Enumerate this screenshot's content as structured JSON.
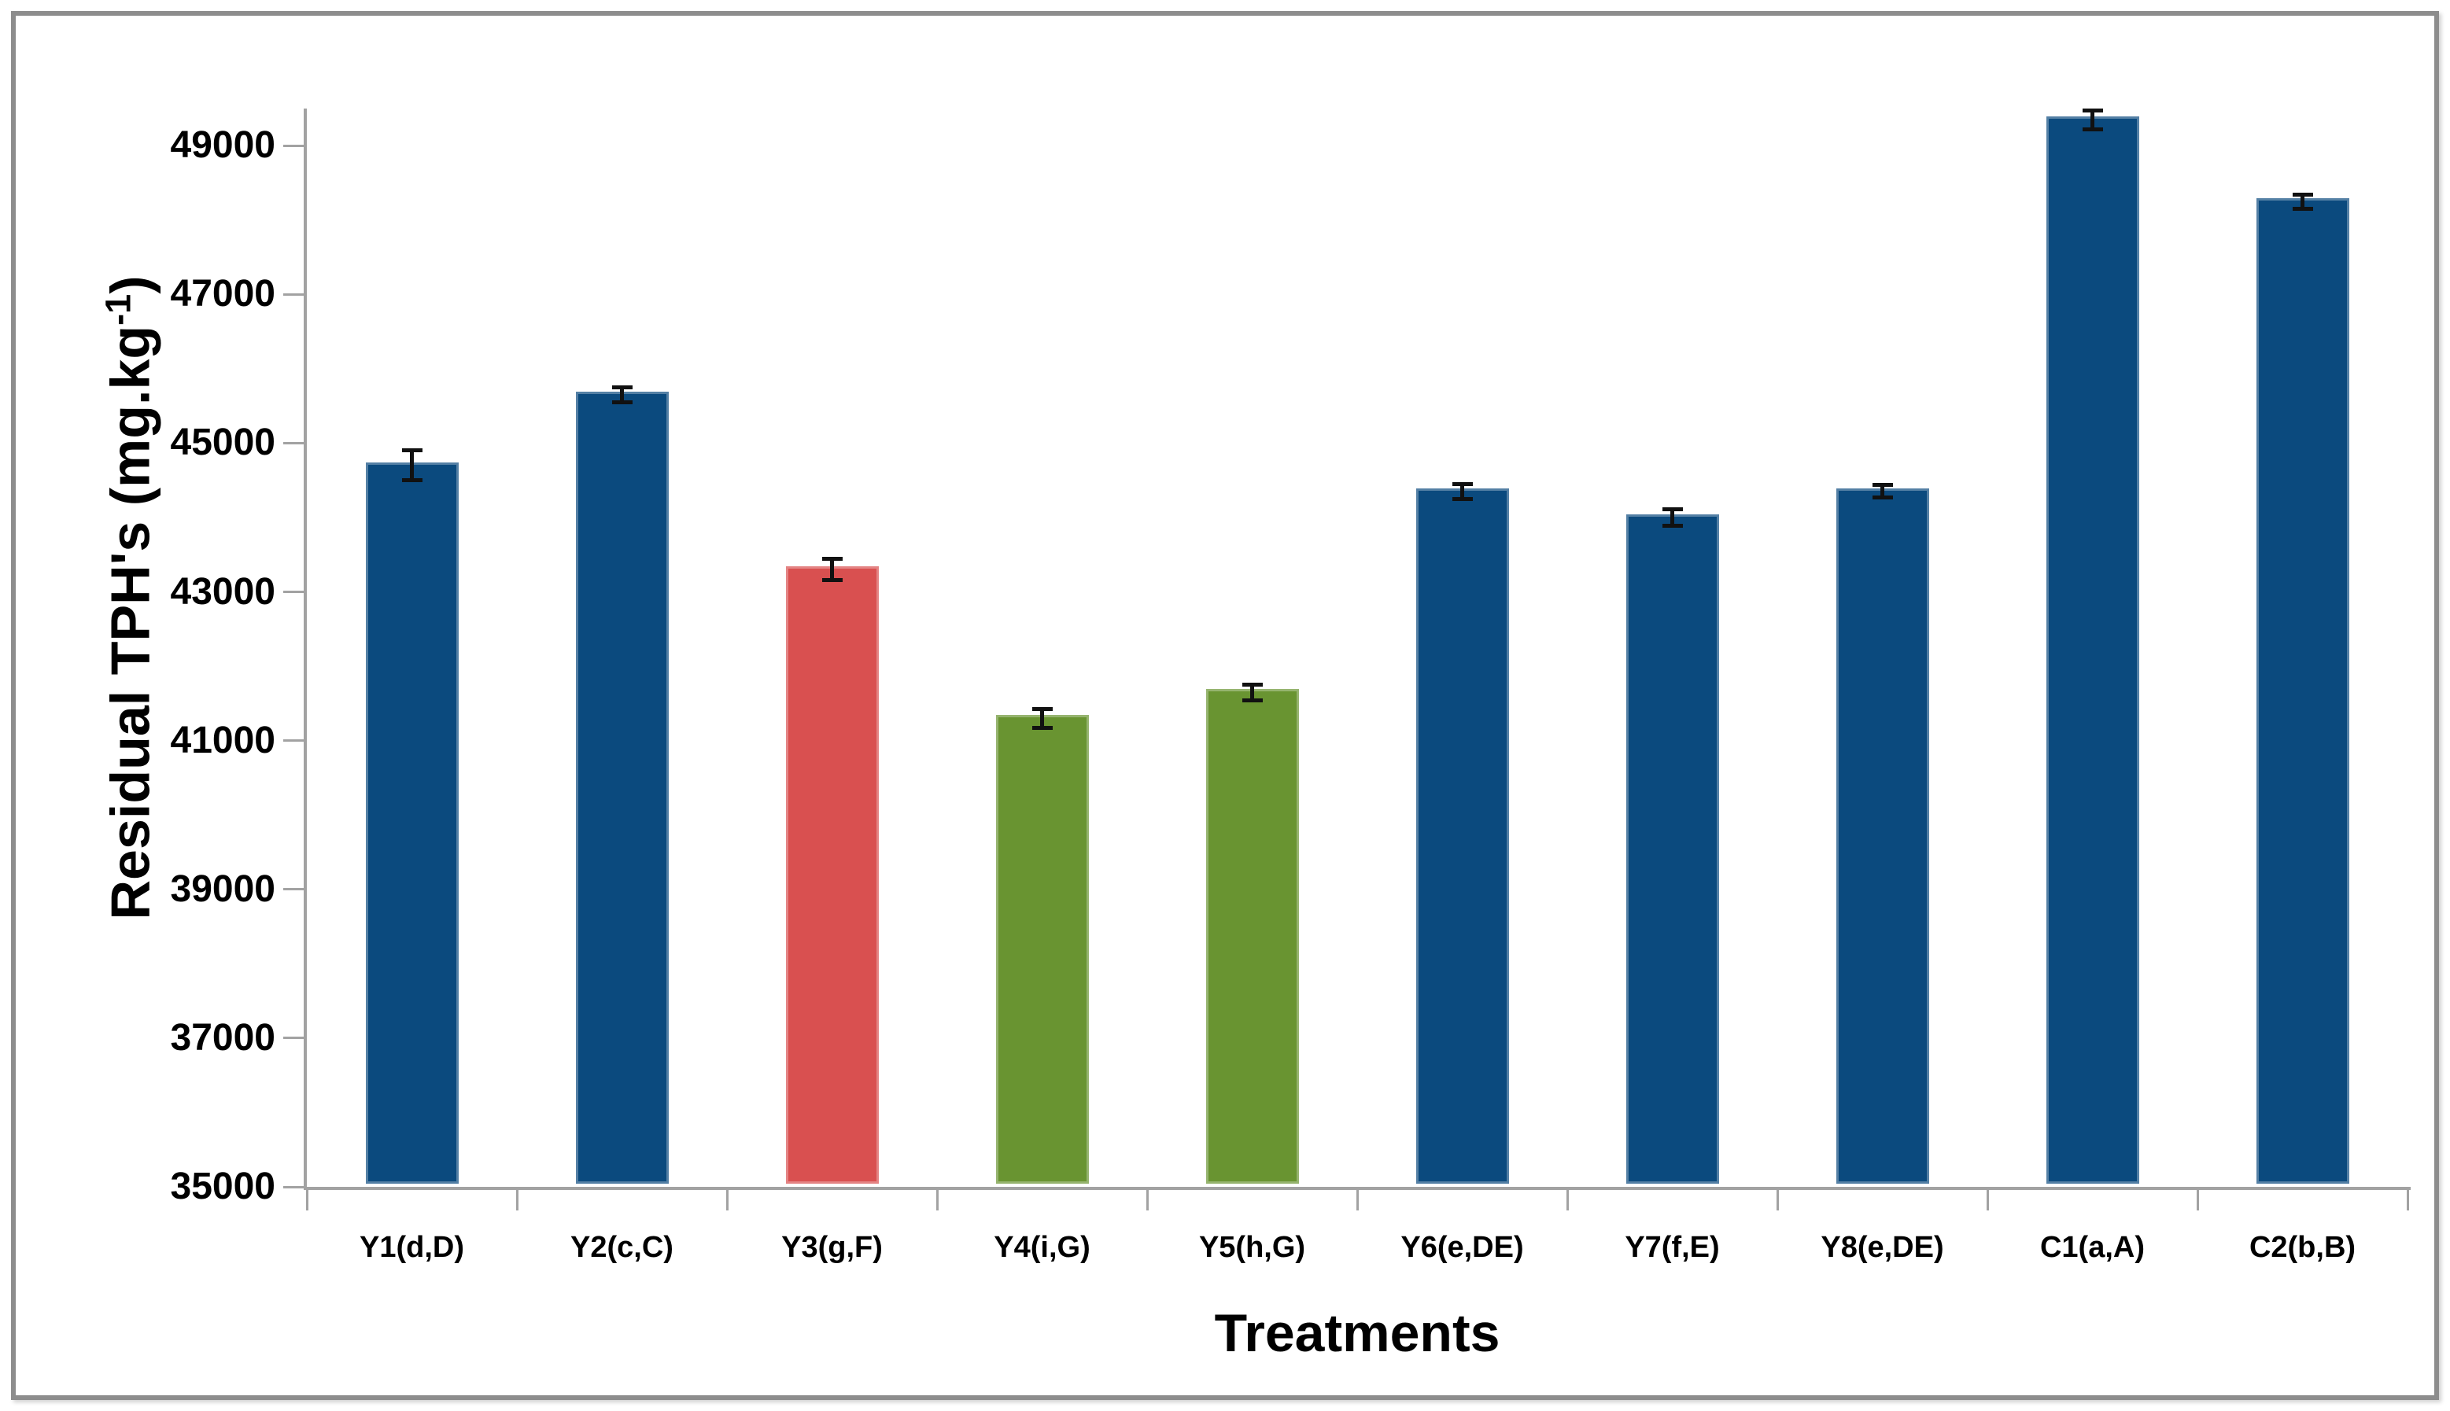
{
  "chart_data": {
    "type": "bar",
    "title": "",
    "xlabel": "Treatments",
    "ylabel": "Residual TPH's (mg.kg-1)",
    "ylabel_prefix": "Residual TPH's (mg.kg",
    "ylabel_sup": "-1",
    "ylabel_suffix": ")",
    "categories": [
      "Y1(d,D)",
      "Y2(c,C)",
      "Y3(g,F)",
      "Y4(i,G)",
      "Y5(h,G)",
      "Y6(e,DE)",
      "Y7(f,E)",
      "Y8(e,DE)",
      "C1(a,A)",
      "C2(b,B)"
    ],
    "values": [
      44700,
      45650,
      43300,
      41300,
      41650,
      44350,
      44000,
      44350,
      49350,
      48250
    ],
    "errors": [
      200,
      100,
      140,
      125,
      105,
      105,
      115,
      85,
      125,
      95
    ],
    "bar_colors": [
      "#0B4A7E",
      "#0B4A7E",
      "#D95050",
      "#699431",
      "#699431",
      "#0B4A7E",
      "#0B4A7E",
      "#0B4A7E",
      "#0B4A7E",
      "#0B4A7E"
    ],
    "yticks": [
      35000,
      37000,
      39000,
      41000,
      43000,
      45000,
      47000,
      49000
    ],
    "ylim": [
      35000,
      49500
    ],
    "grid": false,
    "legend": "none",
    "error_bar_color": "#111111"
  },
  "colors": {
    "bar_blue": "#0B4A7E",
    "bar_red": "#D95050",
    "bar_green": "#699431",
    "axis": "#A2A2A2",
    "frame_border": "#8D8D8D",
    "text": "#000000",
    "background": "#FFFFFF"
  }
}
